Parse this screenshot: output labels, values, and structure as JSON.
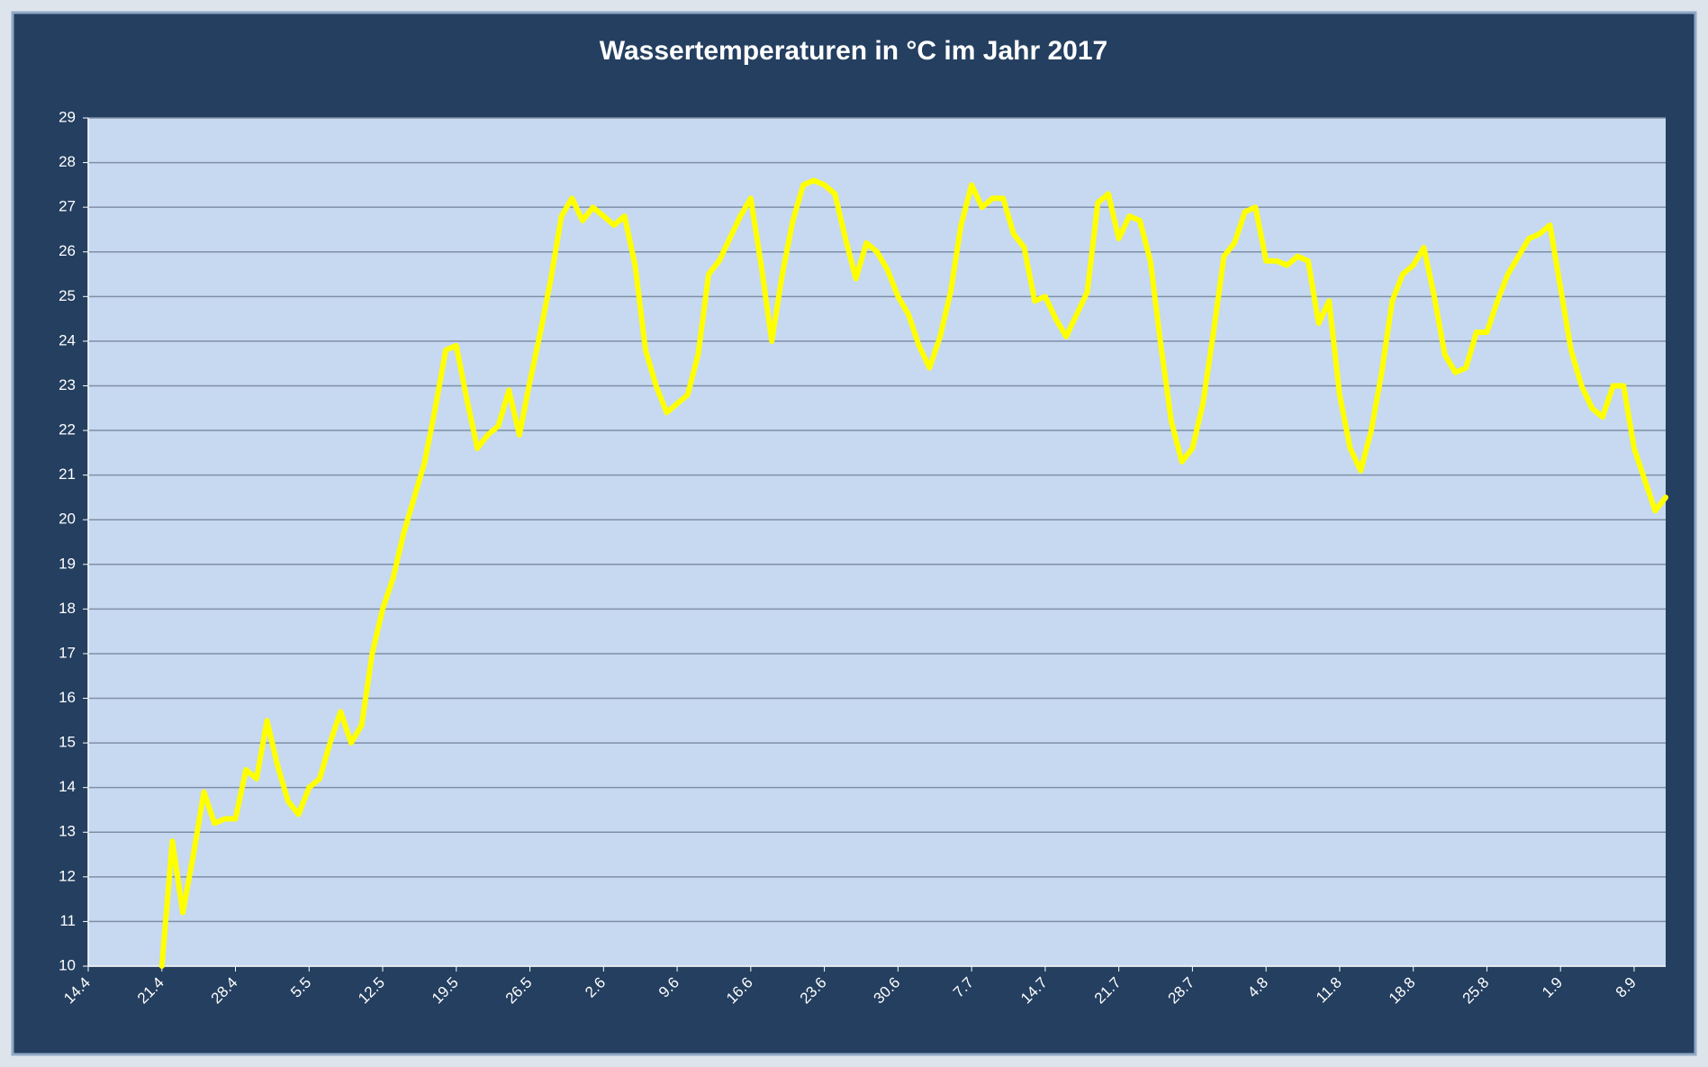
{
  "chart_data": {
    "type": "line",
    "title": "Wassertemperaturen in °C  im Jahr 2017",
    "categories": [
      "14.4",
      null,
      null,
      null,
      null,
      null,
      null,
      "21.4",
      null,
      null,
      null,
      null,
      null,
      null,
      "28.4",
      null,
      null,
      null,
      null,
      null,
      null,
      "5.5",
      null,
      null,
      null,
      null,
      null,
      null,
      "12.5",
      null,
      null,
      null,
      null,
      null,
      null,
      "19.5",
      null,
      null,
      null,
      null,
      null,
      null,
      "26.5",
      null,
      null,
      null,
      null,
      null,
      null,
      "2.6",
      null,
      null,
      null,
      null,
      null,
      null,
      "9.6",
      null,
      null,
      null,
      null,
      null,
      null,
      "16.6",
      null,
      null,
      null,
      null,
      null,
      null,
      "23.6",
      null,
      null,
      null,
      null,
      null,
      null,
      "30.6",
      null,
      null,
      null,
      null,
      null,
      null,
      "7.7",
      null,
      null,
      null,
      null,
      null,
      null,
      "14.7",
      null,
      null,
      null,
      null,
      null,
      null,
      "21.7",
      null,
      null,
      null,
      null,
      null,
      null,
      "28.7",
      null,
      null,
      null,
      null,
      null,
      null,
      "4.8",
      null,
      null,
      null,
      null,
      null,
      null,
      "11.8",
      null,
      null,
      null,
      null,
      null,
      null,
      "18.8",
      null,
      null,
      null,
      null,
      null,
      null,
      "25.8",
      null,
      null,
      null,
      null,
      null,
      null,
      "1.9",
      null,
      null,
      null,
      null,
      null,
      null,
      "8.9",
      null,
      null,
      null
    ],
    "values": [
      null,
      null,
      null,
      null,
      null,
      null,
      null,
      10.0,
      12.8,
      11.2,
      12.5,
      13.9,
      13.2,
      13.3,
      13.3,
      14.4,
      14.2,
      15.5,
      14.5,
      13.7,
      13.4,
      14.0,
      14.2,
      15.0,
      15.7,
      15.0,
      15.4,
      17.0,
      18.0,
      18.7,
      19.7,
      20.5,
      21.3,
      22.5,
      23.8,
      23.9,
      22.7,
      21.6,
      21.9,
      22.1,
      22.9,
      21.9,
      23.1,
      24.2,
      25.4,
      26.8,
      27.2,
      26.7,
      27.0,
      26.8,
      26.6,
      26.8,
      25.7,
      23.8,
      23.0,
      22.4,
      22.6,
      22.8,
      23.7,
      25.5,
      25.8,
      26.3,
      26.8,
      27.2,
      25.7,
      24.0,
      25.5,
      26.7,
      27.5,
      27.6,
      27.5,
      27.3,
      26.3,
      25.4,
      26.2,
      26.0,
      25.6,
      25.0,
      24.6,
      23.9,
      23.4,
      24.1,
      25.1,
      26.6,
      27.5,
      27.0,
      27.2,
      27.2,
      26.4,
      26.1,
      24.9,
      25.0,
      24.5,
      24.1,
      24.6,
      25.1,
      27.1,
      27.3,
      26.3,
      26.8,
      26.7,
      25.8,
      23.9,
      22.2,
      21.3,
      21.6,
      22.6,
      24.2,
      25.9,
      26.2,
      26.9,
      27.0,
      25.8,
      25.8,
      25.7,
      25.9,
      25.8,
      24.4,
      24.9,
      22.8,
      21.6,
      21.1,
      22.0,
      23.3,
      24.9,
      25.5,
      25.7,
      26.1,
      25.0,
      23.7,
      23.3,
      23.4,
      24.2,
      24.2,
      24.9,
      25.5,
      25.9,
      26.3,
      26.4,
      26.6,
      25.2,
      23.8,
      23.0,
      22.5,
      22.3,
      23.0,
      23.0,
      21.6,
      20.9,
      20.2,
      20.5
    ],
    "color": "#ffff00",
    "ylim": [
      10,
      29
    ],
    "yticks": [
      10,
      11,
      12,
      13,
      14,
      15,
      16,
      17,
      18,
      19,
      20,
      21,
      22,
      23,
      24,
      25,
      26,
      27,
      28,
      29
    ],
    "grid": true
  }
}
